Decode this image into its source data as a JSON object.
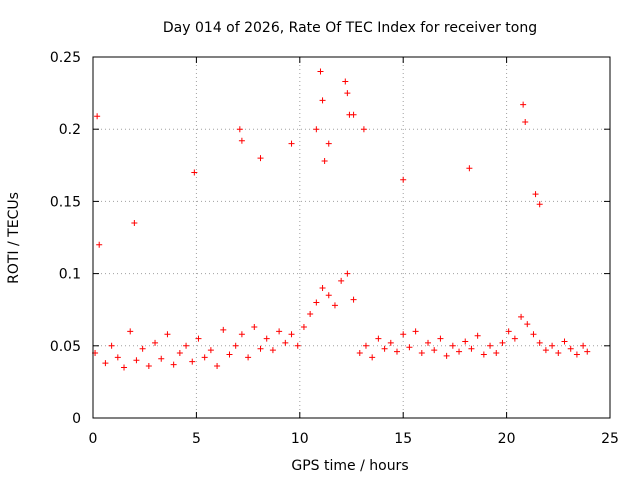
{
  "chart_data": {
    "type": "scatter",
    "title": "Day 014 of 2026, Rate Of TEC Index for receiver tong",
    "xlabel": "GPS time / hours",
    "ylabel": "ROTI / TECUs",
    "xlim": [
      0,
      25
    ],
    "ylim": [
      0,
      0.25
    ],
    "xticks": [
      0,
      5,
      10,
      15,
      20,
      25
    ],
    "yticks": [
      0,
      0.05,
      0.1,
      0.15,
      0.2,
      0.25
    ],
    "xtick_labels": [
      "0",
      "5",
      "10",
      "15",
      "20",
      "25"
    ],
    "ytick_labels": [
      "0",
      "0.05",
      "0.1",
      "0.15",
      "0.2",
      "0.25"
    ],
    "grid": true,
    "marker": "+",
    "color": "#ff0000",
    "series": [
      {
        "x": [
          0.1,
          0.3,
          0.6,
          0.9,
          1.2,
          1.5,
          1.8,
          2.1,
          2.4,
          2.7,
          3.0,
          3.3,
          3.6,
          3.9,
          4.2,
          4.5,
          4.8,
          5.1,
          5.4,
          5.7,
          6.0,
          6.3,
          6.6,
          6.9,
          7.2,
          7.5,
          7.8,
          8.1,
          8.4,
          8.7,
          9.0,
          9.3,
          9.6,
          9.9,
          10.2,
          10.5,
          10.8,
          11.1,
          11.4,
          11.7,
          12.0,
          12.3,
          12.6,
          12.9,
          13.2,
          13.5,
          13.8,
          14.1,
          14.4,
          14.7,
          15.0,
          15.3,
          15.6,
          15.9,
          16.2,
          16.5,
          16.8,
          17.1,
          17.4,
          17.7,
          18.0,
          18.3,
          18.6,
          18.9,
          19.2,
          19.5,
          19.8,
          20.1,
          20.4,
          20.7,
          21.0,
          21.3,
          21.6,
          21.9,
          22.2,
          22.5,
          22.8,
          23.1,
          23.4,
          23.7,
          23.9,
          0.2,
          2.0,
          4.9,
          7.1,
          7.2,
          8.1,
          9.6,
          10.8,
          11.0,
          11.1,
          11.2,
          11.4,
          12.2,
          12.3,
          12.4,
          12.6,
          13.1,
          15.0,
          18.2,
          20.8,
          20.9,
          21.4,
          21.6
        ],
        "y": [
          0.045,
          0.12,
          0.038,
          0.05,
          0.042,
          0.035,
          0.06,
          0.04,
          0.048,
          0.036,
          0.052,
          0.041,
          0.058,
          0.037,
          0.045,
          0.05,
          0.039,
          0.055,
          0.042,
          0.047,
          0.036,
          0.061,
          0.044,
          0.05,
          0.058,
          0.042,
          0.063,
          0.048,
          0.055,
          0.047,
          0.06,
          0.052,
          0.058,
          0.05,
          0.063,
          0.072,
          0.08,
          0.09,
          0.085,
          0.078,
          0.095,
          0.1,
          0.082,
          0.045,
          0.05,
          0.042,
          0.055,
          0.048,
          0.052,
          0.046,
          0.058,
          0.049,
          0.06,
          0.045,
          0.052,
          0.047,
          0.055,
          0.043,
          0.05,
          0.046,
          0.053,
          0.048,
          0.057,
          0.044,
          0.05,
          0.045,
          0.052,
          0.06,
          0.055,
          0.07,
          0.065,
          0.058,
          0.052,
          0.047,
          0.05,
          0.045,
          0.053,
          0.048,
          0.044,
          0.05,
          0.046,
          0.209,
          0.135,
          0.17,
          0.2,
          0.192,
          0.18,
          0.19,
          0.2,
          0.24,
          0.22,
          0.178,
          0.19,
          0.233,
          0.225,
          0.21,
          0.21,
          0.2,
          0.165,
          0.173,
          0.217,
          0.205,
          0.155,
          0.148
        ]
      }
    ]
  }
}
